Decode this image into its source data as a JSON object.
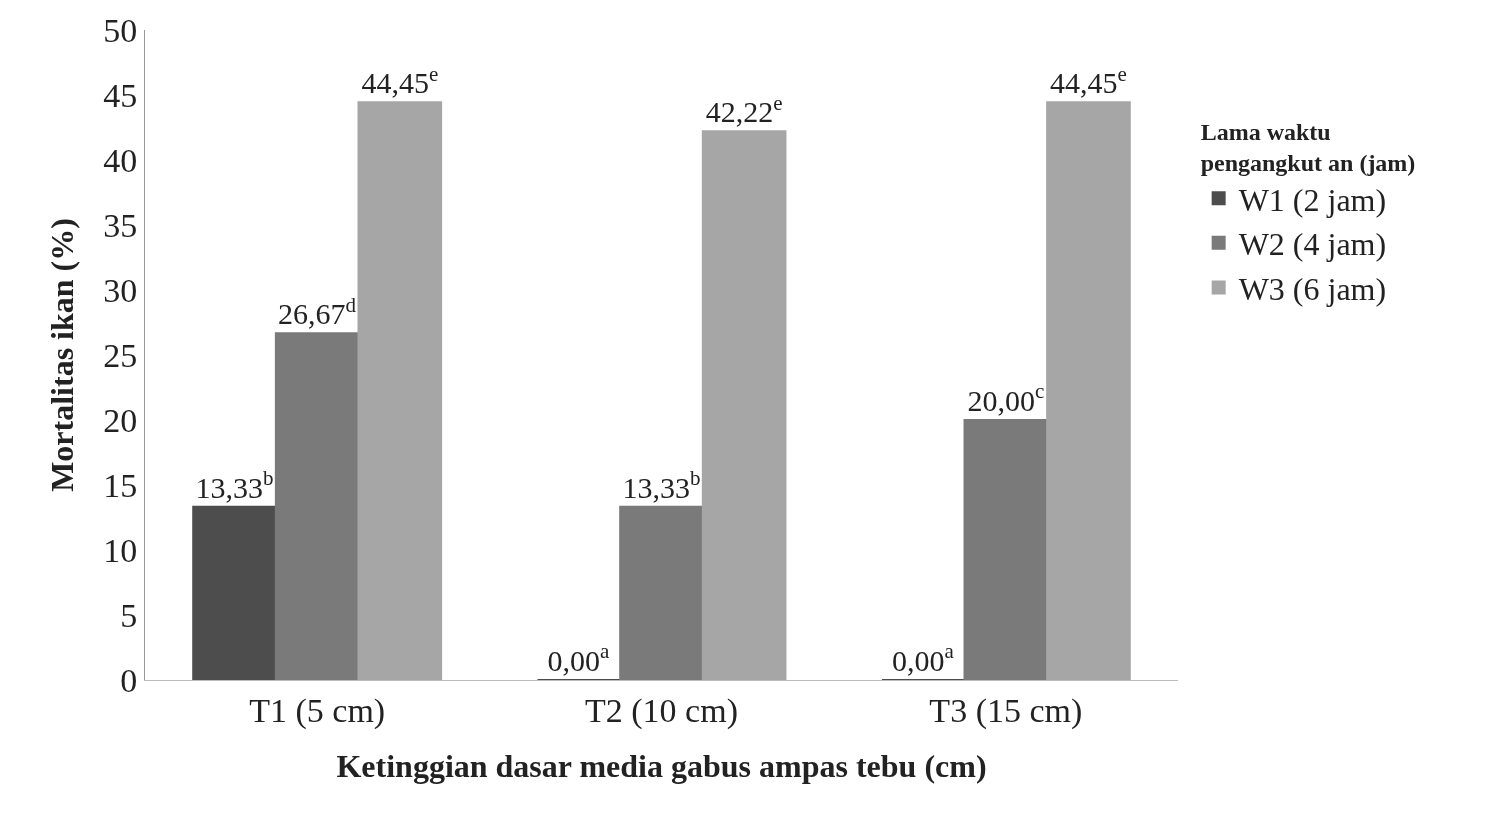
{
  "chart_data": {
    "type": "bar",
    "xlabel": "Ketinggian dasar media gabus ampas tebu (cm)",
    "ylabel": "Mortalitas ikan (%)",
    "legend_title": "Lama waktu pengangkut an (jam)",
    "categories": [
      "T1 (5 cm)",
      "T2 (10 cm)",
      "T3 (15 cm)"
    ],
    "series": [
      {
        "name": "W1 (2 jam)",
        "color": "#4d4d4d",
        "values": [
          13.33,
          0,
          0
        ],
        "value_labels": [
          "13,33$^{b}$",
          "0,00$^{a}$",
          "0,00$^{a}$"
        ]
      },
      {
        "name": "W2 (4 jam)",
        "color": "#7a7a7a",
        "values": [
          26.67,
          13.33,
          20.0
        ],
        "value_labels": [
          "26,67$^{d}$",
          "13,33$^{b}$",
          "20,00$^{c}$"
        ]
      },
      {
        "name": "W3 (6 jam)",
        "color": "#a6a6a6",
        "values": [
          44.45,
          42.22,
          44.45
        ],
        "value_labels": [
          "44,45$^{e}$",
          "42,22$^{e}$",
          "44,45$^{e}$"
        ]
      }
    ],
    "ylim": [
      0,
      50
    ],
    "yticks": [
      0,
      5,
      10,
      15,
      20,
      25,
      30,
      35,
      40,
      45,
      50
    ],
    "grid": false,
    "legend": "right"
  }
}
